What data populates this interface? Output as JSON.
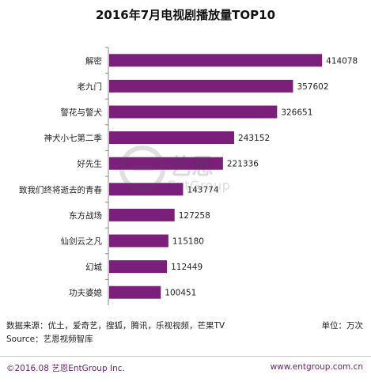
{
  "title": "2016年7月电视剧播放量TOP10",
  "chart_data": {
    "type": "bar",
    "orientation": "horizontal",
    "title": "2016年7月电视剧播放量TOP10",
    "categories": [
      "解密",
      "老九门",
      "警花与警犬",
      "神犬小七第二季",
      "好先生",
      "致我们终将逝去的青春",
      "东方战场",
      "仙剑云之凡",
      "幻城",
      "功夫婆媳"
    ],
    "values": [
      414078,
      357602,
      326651,
      243152,
      221336,
      143774,
      127258,
      115180,
      112449,
      100451
    ],
    "xlim": [
      0,
      420000
    ],
    "bar_color": "#7a1f7a",
    "grid": false,
    "legend": "none"
  },
  "watermark": {
    "brand": "艺恩",
    "sub": "EntGroup"
  },
  "notes": {
    "data_source": "数据来源：优土，爱奇艺，搜狐，腾讯，乐视视频，芒果TV",
    "unit": "单位：万次",
    "source": "Source：艺恩视频智库"
  },
  "footer": {
    "copyright": "©2016.08 艺恩EntGroup Inc.",
    "website": "www.entgroup.com.cn"
  },
  "colors": {
    "bar": "#7a1f7a",
    "footer_text": "#6d1f6e",
    "axis": "#888888"
  }
}
